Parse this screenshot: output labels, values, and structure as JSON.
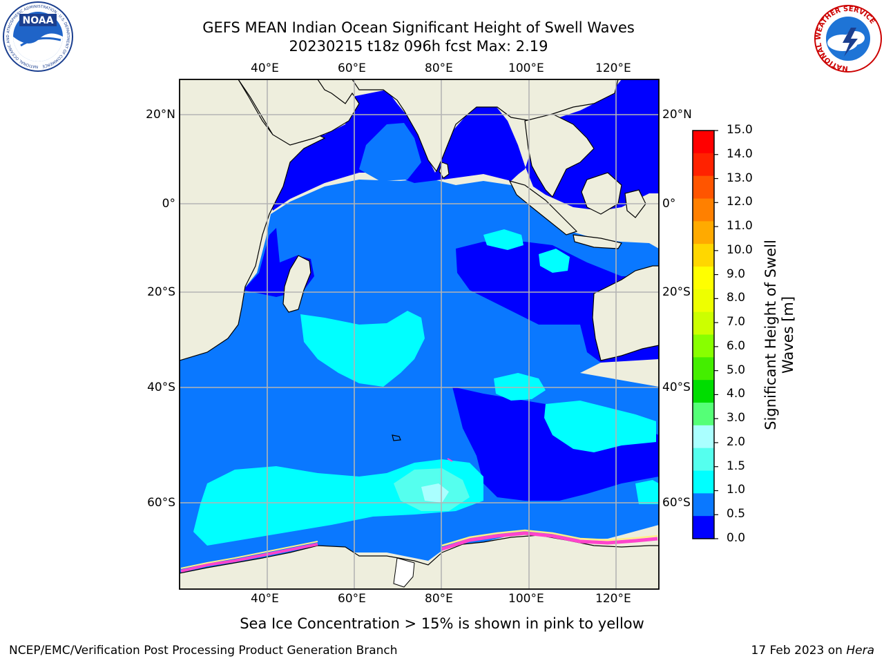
{
  "title": {
    "line1": "GEFS MEAN Indian Ocean Significant Height of Swell Waves",
    "line2": "20230215 t18z 096h fcst   Max: 2.19"
  },
  "logos": {
    "left": {
      "name": "noaa-logo",
      "text": "NOAA",
      "ring_text": "NATIONAL OCEANIC AND ATMOSPHERIC ADMINISTRATION · U.S. DEPARTMENT OF COMMERCE"
    },
    "right": {
      "name": "nws-logo",
      "ring_text": "NATIONAL WEATHER SERVICE"
    }
  },
  "map": {
    "longitude_ticks": [
      "40°E",
      "60°E",
      "80°E",
      "100°E",
      "120°E"
    ],
    "latitude_ticks": [
      "20°N",
      "0°",
      "20°S",
      "40°S",
      "60°S"
    ],
    "grid": true,
    "colors": {
      "land": "#eeeedd",
      "ocean_lt_0_5": "#0000ff",
      "ocean_0_5_1_0": "#0a78ff",
      "ocean_1_0_1_5": "#00ffff",
      "ocean_1_5_2_0": "#44ffee",
      "ocean_2_0_3_0": "#aaffff",
      "sea_ice": "#ff44cc",
      "sea_ice_edge": "#ffee88",
      "grid": "#b4b4b4"
    }
  },
  "colorbar": {
    "label_line1": "Significant Height of Swell",
    "label_line2": "Waves [m]",
    "ticks": [
      "15.0",
      "14.0",
      "13.0",
      "12.0",
      "11.0",
      "10.0",
      "9.0",
      "8.0",
      "7.0",
      "6.0",
      "5.0",
      "4.0",
      "3.0",
      "2.0",
      "1.5",
      "1.0",
      "0.5",
      "0.0"
    ],
    "colors": [
      "#ff0000",
      "#ff2200",
      "#ff5500",
      "#ff8000",
      "#ffaa00",
      "#ffd700",
      "#ffff00",
      "#eeff00",
      "#ccff00",
      "#88ff00",
      "#44ee00",
      "#00dd00",
      "#55ff77",
      "#aaffff",
      "#55ffee",
      "#00ffff",
      "#0a78ff",
      "#0000ff"
    ]
  },
  "caption": "Sea Ice Concentration > 15% is shown in pink to yellow",
  "footer": {
    "left": "NCEP/EMC/Verification Post Processing Product Generation Branch",
    "right_prefix": "17 Feb 2023 on ",
    "right_machine": "Hera"
  }
}
